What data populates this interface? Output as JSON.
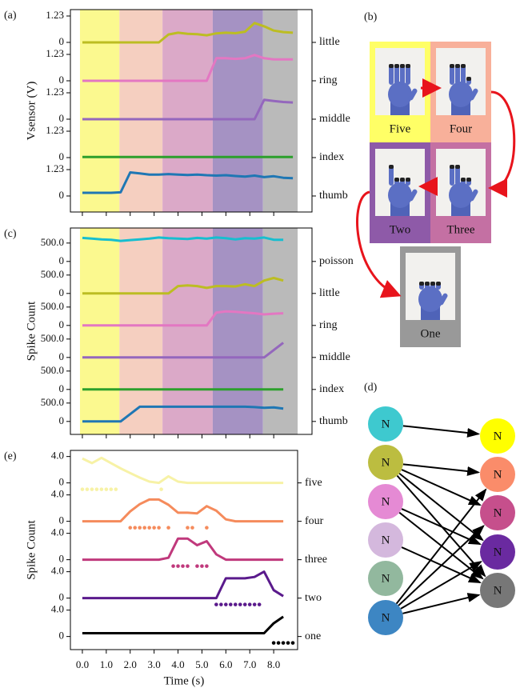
{
  "chart_data": [
    {
      "type": "line",
      "panel_label": "(a)",
      "ylabel": "Vsensor (V)",
      "x": [
        0,
        0.4,
        0.8,
        1.2,
        1.6,
        2,
        2.4,
        2.8,
        3.2,
        3.6,
        4,
        4.4,
        4.8,
        5.2,
        5.6,
        6,
        6.4,
        6.8,
        7.2,
        7.6,
        8,
        8.4,
        8.8
      ],
      "xlim": [
        -0.5,
        9.6
      ],
      "xticks": [
        0,
        1,
        2,
        3,
        4,
        5,
        6,
        7,
        8
      ],
      "ylim": [
        -0.56,
        1.23
      ],
      "yticks": [
        0,
        1.23
      ],
      "bands": [
        {
          "start": -0.1,
          "end": 1.55,
          "color": "#fbf98f"
        },
        {
          "start": 1.55,
          "end": 3.35,
          "color": "#f5cfc0"
        },
        {
          "start": 3.35,
          "end": 5.45,
          "color": "#dba9c8"
        },
        {
          "start": 5.45,
          "end": 7.55,
          "color": "#a592c3"
        },
        {
          "start": 7.55,
          "end": 9.0,
          "color": "#bababa"
        }
      ],
      "series": [
        {
          "name": "little",
          "color": "#bcbd22",
          "values": [
            0,
            0,
            0,
            0,
            0,
            0,
            0,
            0,
            0,
            0.37,
            0.45,
            0.4,
            0.38,
            0.33,
            0.42,
            0.45,
            0.43,
            0.5,
            0.9,
            0.75,
            0.55,
            0.48,
            0.45
          ]
        },
        {
          "name": "ring",
          "color": "#e377c2",
          "values": [
            0,
            0,
            0,
            0,
            0,
            0,
            0,
            0,
            0,
            0,
            0,
            0,
            0,
            0,
            1.05,
            1.05,
            1.02,
            1.05,
            1.2,
            1.05,
            1.0,
            1.0,
            1.0
          ]
        },
        {
          "name": "middle",
          "color": "#9467bd",
          "values": [
            0,
            0,
            0,
            0,
            0,
            0,
            0,
            0,
            0,
            0,
            0,
            0,
            0,
            0,
            0,
            0,
            0,
            0,
            0,
            0.9,
            0.85,
            0.8,
            0.78
          ]
        },
        {
          "name": "index",
          "color": "#2ca02c",
          "values": [
            0.03,
            0.03,
            0.03,
            0.03,
            0.03,
            0.03,
            0.03,
            0.03,
            0.03,
            0.03,
            0.03,
            0.03,
            0.03,
            0.03,
            0.03,
            0.03,
            0.03,
            0.03,
            0.03,
            0.03,
            0.03,
            0.03,
            0.03
          ]
        },
        {
          "name": "thumb",
          "color": "#1f77b4",
          "values": [
            0.15,
            0.15,
            0.15,
            0.15,
            0.17,
            1.1,
            1.05,
            1.0,
            1.0,
            1.02,
            1.0,
            0.98,
            1.0,
            0.97,
            0.95,
            0.97,
            0.93,
            0.9,
            0.95,
            0.88,
            0.92,
            0.85,
            0.83
          ]
        }
      ]
    },
    {
      "type": "line",
      "panel_label": "(c)",
      "ylabel": "Spike Count",
      "x": [
        0,
        0.4,
        0.8,
        1.2,
        1.6,
        2,
        2.4,
        2.8,
        3.2,
        3.6,
        4,
        4.4,
        4.8,
        5.2,
        5.6,
        6,
        6.4,
        6.8,
        7.2,
        7.6,
        8,
        8.4,
        8.8
      ],
      "xlim": [
        -0.5,
        9.6
      ],
      "xticks": [
        0,
        1,
        2,
        3,
        4,
        5,
        6,
        7,
        8
      ],
      "ylim": [
        -200,
        670
      ],
      "yticks": [
        0,
        {
          "value": 500,
          "label": "500.0"
        }
      ],
      "bands": [
        {
          "start": -0.1,
          "end": 1.55,
          "color": "#fbf98f"
        },
        {
          "start": 1.55,
          "end": 3.35,
          "color": "#f5cfc0"
        },
        {
          "start": 3.35,
          "end": 5.45,
          "color": "#dba9c8"
        },
        {
          "start": 5.45,
          "end": 7.55,
          "color": "#a592c3"
        },
        {
          "start": 7.55,
          "end": 9.0,
          "color": "#bababa"
        }
      ],
      "series": [
        {
          "name": "poisson",
          "color": "#17becf",
          "values": [
            640,
            620,
            600,
            590,
            560,
            580,
            600,
            620,
            650,
            630,
            620,
            610,
            640,
            620,
            650,
            630,
            600,
            630,
            620,
            650,
            590,
            590,
            null
          ]
        },
        {
          "name": "little",
          "color": "#bcbd22",
          "values": [
            0,
            0,
            0,
            0,
            0,
            0,
            0,
            0,
            0,
            0,
            200,
            220,
            200,
            150,
            200,
            200,
            190,
            250,
            200,
            350,
            420,
            350,
            null
          ]
        },
        {
          "name": "ring",
          "color": "#e377c2",
          "values": [
            0,
            0,
            0,
            0,
            0,
            0,
            0,
            0,
            0,
            0,
            0,
            0,
            0,
            0,
            350,
            380,
            370,
            350,
            330,
            300,
            320,
            330,
            null
          ]
        },
        {
          "name": "middle",
          "color": "#9467bd",
          "values": [
            0,
            0,
            0,
            0,
            0,
            0,
            0,
            0,
            0,
            0,
            0,
            0,
            0,
            0,
            0,
            0,
            0,
            0,
            0,
            0,
            200,
            400,
            null
          ]
        },
        {
          "name": "index",
          "color": "#2ca02c",
          "values": [
            0,
            0,
            0,
            0,
            0,
            0,
            0,
            0,
            0,
            0,
            0,
            0,
            0,
            0,
            0,
            0,
            0,
            0,
            0,
            0,
            0,
            0,
            null
          ]
        },
        {
          "name": "thumb",
          "color": "#1f77b4",
          "values": [
            0,
            0,
            0,
            0,
            0,
            200,
            400,
            400,
            400,
            400,
            400,
            400,
            400,
            400,
            400,
            400,
            400,
            400,
            390,
            370,
            380,
            350,
            null
          ]
        }
      ]
    },
    {
      "type": "line",
      "panel_label": "(e)",
      "ylabel": "Spike Count",
      "xlabel": "Time (s)",
      "x": [
        0,
        0.4,
        0.8,
        1.2,
        1.6,
        2,
        2.4,
        2.8,
        3.2,
        3.6,
        4,
        4.4,
        4.8,
        5.2,
        5.6,
        6,
        6.4,
        6.8,
        7.2,
        7.6,
        8,
        8.4,
        8.8
      ],
      "xlim": [
        -0.5,
        9.0
      ],
      "xticks": [
        {
          "value": 0,
          "label": "0.0"
        },
        {
          "value": 1,
          "label": "1.0"
        },
        {
          "value": 2,
          "label": "2.0"
        },
        {
          "value": 3,
          "label": "3.0"
        },
        {
          "value": 4,
          "label": "4.0"
        },
        {
          "value": 5,
          "label": "5.0"
        },
        {
          "value": 6,
          "label": "6.0"
        },
        {
          "value": 7,
          "label": "7.0"
        },
        {
          "value": 8,
          "label": "8.0"
        }
      ],
      "ylim": [
        -1.5,
        4.32
      ],
      "yticks": [
        0,
        {
          "value": 4,
          "label": "4.0"
        }
      ],
      "series": [
        {
          "name": "five",
          "color": "#f7f2a6",
          "values": [
            3.7,
            3.0,
            3.8,
            3.0,
            2.2,
            1.5,
            0.8,
            0.2,
            0,
            1.0,
            0.2,
            0,
            0,
            0,
            0,
            0,
            0,
            0,
            0,
            0,
            0,
            0,
            null
          ],
          "spikes": [
            0,
            0.2,
            0.4,
            0.6,
            0.8,
            1.0,
            1.2,
            1.4,
            3.3
          ]
        },
        {
          "name": "four",
          "color": "#f58b5c",
          "values": [
            0,
            0,
            0,
            0,
            0,
            1.5,
            2.6,
            3.3,
            3.3,
            2.5,
            1.3,
            1.3,
            1.2,
            2.3,
            1.6,
            0.3,
            0,
            0,
            0,
            0,
            0,
            0,
            null
          ],
          "spikes": [
            2.0,
            2.2,
            2.4,
            2.6,
            2.8,
            3.0,
            3.2,
            3.6,
            4.4,
            4.6,
            5.2
          ]
        },
        {
          "name": "three",
          "color": "#c0397c",
          "values": [
            0,
            0,
            0,
            0,
            0,
            0,
            0,
            0,
            0,
            0.3,
            3.2,
            3.2,
            2.2,
            2.8,
            0.8,
            0,
            0,
            0,
            0,
            0,
            0,
            0,
            null
          ],
          "spikes": [
            3.8,
            4.0,
            4.2,
            4.4,
            4.8,
            5.0,
            5.2
          ]
        },
        {
          "name": "two",
          "color": "#5a1a8c",
          "values": [
            0,
            0,
            0,
            0,
            0,
            0,
            0,
            0,
            0,
            0,
            0,
            0,
            0,
            0,
            0,
            3.0,
            3.0,
            3.0,
            3.2,
            4.0,
            1.2,
            0.3,
            null
          ],
          "spikes": [
            5.6,
            5.8,
            6.0,
            6.2,
            6.4,
            6.6,
            6.8,
            7.0,
            7.2,
            7.4
          ]
        },
        {
          "name": "one",
          "color": "#000000",
          "values": [
            0.5,
            0.5,
            0.5,
            0.5,
            0.5,
            0.5,
            0.5,
            0.5,
            0.5,
            0.5,
            0.5,
            0.5,
            0.5,
            0.5,
            0.5,
            0.5,
            0.5,
            0.5,
            0.5,
            0.5,
            2.0,
            3.0,
            null
          ],
          "spikes": [
            8.0,
            8.2,
            8.4,
            8.6,
            8.8
          ]
        }
      ]
    }
  ],
  "panel_b": {
    "label": "(b)",
    "tiles": [
      {
        "label": "Five",
        "color": "#ffff66"
      },
      {
        "label": "Four",
        "color": "#f8b09a"
      },
      {
        "label": "Two",
        "color": "#8e5aa8"
      },
      {
        "label": "Three",
        "color": "#c470a3"
      },
      {
        "label": "One",
        "color": "#999999"
      }
    ]
  },
  "panel_d": {
    "label": "(d)",
    "left_nodes": [
      {
        "label": "N",
        "color": "#3ec9cf"
      },
      {
        "label": "N",
        "color": "#bcbd40"
      },
      {
        "label": "N",
        "color": "#e58ad4"
      },
      {
        "label": "N",
        "color": "#d4b8dd"
      },
      {
        "label": "N",
        "color": "#92b89e"
      },
      {
        "label": "N",
        "color": "#3d86c3"
      }
    ],
    "right_nodes": [
      {
        "label": "N",
        "color": "#ffff00"
      },
      {
        "label": "N",
        "color": "#fa8c6a"
      },
      {
        "label": "N",
        "color": "#c64f8c"
      },
      {
        "label": "N",
        "color": "#6a2aa0"
      },
      {
        "label": "N",
        "color": "#777777"
      }
    ]
  }
}
